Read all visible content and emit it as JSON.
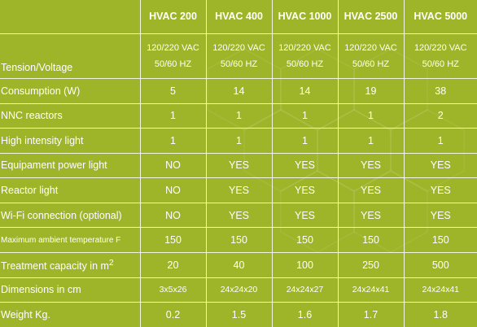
{
  "models": [
    "HVAC 200",
    "HVAC 400",
    "HVAC 1000",
    "HVAC 2500",
    "HVAC 5000"
  ],
  "tension": {
    "label": "Tension/Voltage",
    "values": [
      [
        "120/220 VAC",
        "50/60 HZ"
      ],
      [
        "120/220 VAC",
        "50/60 HZ"
      ],
      [
        "120/220 VAC",
        "50/60 HZ"
      ],
      [
        "120/220 VAC",
        "50/60 HZ"
      ],
      [
        "120/220 VAC",
        "50/60 HZ"
      ]
    ]
  },
  "rows": [
    {
      "label": "Consumption (W)",
      "values": [
        "5",
        "14",
        "14",
        "19",
        "38"
      ]
    },
    {
      "label": "NNC reactors",
      "values": [
        "1",
        "1",
        "1",
        "1",
        "2"
      ]
    },
    {
      "label": "High intensity light",
      "values": [
        "1",
        "1",
        "1",
        "1",
        "1"
      ]
    },
    {
      "label": "Equipament power light",
      "values": [
        "NO",
        "YES",
        "YES",
        "YES",
        "YES"
      ]
    },
    {
      "label": "Reactor light",
      "values": [
        "NO",
        "YES",
        "YES",
        "YES",
        "YES"
      ]
    },
    {
      "label": "Wi-Fi connection (optional)",
      "values": [
        "NO",
        "YES",
        "YES",
        "YES",
        "YES"
      ]
    },
    {
      "label": "Maximum ambient temperature F",
      "values": [
        "150",
        "150",
        "150",
        "150",
        "150"
      ]
    },
    {
      "label": "Treatment capacity in m",
      "sup": "2",
      "values": [
        "20",
        "40",
        "100",
        "250",
        "500"
      ]
    },
    {
      "label": "Dimensions in cm",
      "values": [
        "3x5x26",
        "24x24x20",
        "24x24x27",
        "24x24x41",
        "24x24x41"
      ]
    },
    {
      "label": "Weight Kg.",
      "values": [
        "0.2",
        "1.5",
        "1.6",
        "1.7",
        "1.8"
      ]
    }
  ],
  "colors": {
    "background": "#9eb52a",
    "text": "#ffffff"
  }
}
